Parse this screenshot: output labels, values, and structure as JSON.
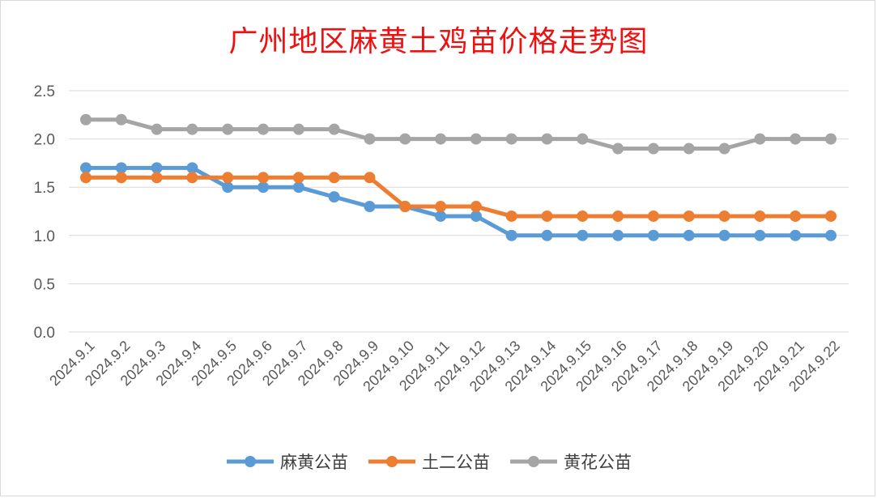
{
  "chart_data": {
    "type": "line",
    "title": "广州地区麻黄土鸡苗价格走势图",
    "xlabel": "",
    "ylabel": "",
    "categories": [
      "2024.9.1",
      "2024.9.2",
      "2024.9.3",
      "2024.9.4",
      "2024.9.5",
      "2024.9.6",
      "2024.9.7",
      "2024.9.8",
      "2024.9.9",
      "2024.9.10",
      "2024.9.11",
      "2024.9.12",
      "2024.9.13",
      "2024.9.14",
      "2024.9.15",
      "2024.9.16",
      "2024.9.17",
      "2024.9.18",
      "2024.9.19",
      "2024.9.20",
      "2024.9.21",
      "2024.9.22"
    ],
    "ylim": [
      0,
      2.5
    ],
    "yticks": [
      "0.0",
      "0.5",
      "1.0",
      "1.5",
      "2.0",
      "2.5"
    ],
    "grid": true,
    "legend_position": "bottom",
    "series": [
      {
        "name": "麻黄公苗",
        "color": "#5b9bd5",
        "values": [
          1.7,
          1.7,
          1.7,
          1.7,
          1.5,
          1.5,
          1.5,
          1.4,
          1.3,
          1.3,
          1.2,
          1.2,
          1.0,
          1.0,
          1.0,
          1.0,
          1.0,
          1.0,
          1.0,
          1.0,
          1.0,
          1.0
        ]
      },
      {
        "name": "土二公苗",
        "color": "#ed7d31",
        "values": [
          1.6,
          1.6,
          1.6,
          1.6,
          1.6,
          1.6,
          1.6,
          1.6,
          1.6,
          1.3,
          1.3,
          1.3,
          1.2,
          1.2,
          1.2,
          1.2,
          1.2,
          1.2,
          1.2,
          1.2,
          1.2,
          1.2
        ]
      },
      {
        "name": "黄花公苗",
        "color": "#a5a5a5",
        "values": [
          2.2,
          2.2,
          2.1,
          2.1,
          2.1,
          2.1,
          2.1,
          2.1,
          2.0,
          2.0,
          2.0,
          2.0,
          2.0,
          2.0,
          2.0,
          1.9,
          1.9,
          1.9,
          1.9,
          2.0,
          2.0,
          2.0
        ]
      }
    ]
  }
}
